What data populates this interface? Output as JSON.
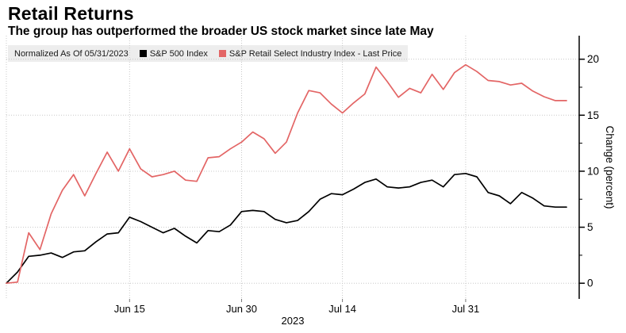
{
  "header": {
    "title": "Retail Returns",
    "subtitle": "The group has outperformed the broader US stock market since late May"
  },
  "legend": {
    "note": "Normalized As Of 05/31/2023",
    "items": [
      {
        "label": "S&P 500 Index",
        "color": "#000000"
      },
      {
        "label": "S&P Retail Select Industry Index - Last Price",
        "color": "#e36565"
      }
    ]
  },
  "chart_data": {
    "type": "line",
    "title": "Retail Returns",
    "x_unit": "trading days since 05/31/2023",
    "x_ticks": [
      {
        "day": 11,
        "label": "Jun 15"
      },
      {
        "day": 21,
        "label": "Jun 30"
      },
      {
        "day": 30,
        "label": "Jul 14"
      },
      {
        "day": 41,
        "label": "Jul 31"
      }
    ],
    "x_gridline_extra_day": 0,
    "x_period_label": "2023",
    "ylabel": "Change (percent)",
    "ylim": [
      -1.4,
      22.1
    ],
    "y_ticks": [
      0,
      5,
      10,
      15,
      20
    ],
    "y_minor_ticks": [
      2.5,
      7.5,
      12.5,
      17.5
    ],
    "grid": "dotted",
    "legend_position": "top",
    "series": [
      {
        "name": "S&P 500 Index",
        "color": "#000000",
        "values": [
          0,
          1.0,
          2.4,
          2.5,
          2.7,
          2.3,
          2.8,
          2.9,
          3.7,
          4.4,
          4.5,
          5.9,
          5.5,
          5.0,
          4.5,
          4.9,
          4.2,
          3.6,
          4.7,
          4.6,
          5.2,
          6.4,
          6.5,
          6.4,
          5.7,
          5.4,
          5.6,
          6.4,
          7.5,
          8.0,
          7.9,
          8.4,
          9.0,
          9.3,
          8.6,
          8.5,
          8.6,
          9.0,
          9.2,
          8.6,
          9.7,
          9.8,
          9.5,
          8.1,
          7.8,
          7.1,
          8.1,
          7.6,
          6.9,
          6.8,
          6.8
        ]
      },
      {
        "name": "S&P Retail Select Industry Index - Last Price",
        "color": "#e36565",
        "values": [
          0,
          0.1,
          4.5,
          3.0,
          6.2,
          8.3,
          9.7,
          7.8,
          9.8,
          11.7,
          10.0,
          12.0,
          10.2,
          9.5,
          9.7,
          10.0,
          9.2,
          9.1,
          11.2,
          11.3,
          12.0,
          12.6,
          13.5,
          12.9,
          11.6,
          12.6,
          15.2,
          17.2,
          17.0,
          16.0,
          15.2,
          16.1,
          16.9,
          19.3,
          18.0,
          16.6,
          17.4,
          17.0,
          18.65,
          17.3,
          18.8,
          19.5,
          18.9,
          18.1,
          18.0,
          17.7,
          17.85,
          17.15,
          16.65,
          16.3,
          16.3
        ]
      }
    ]
  },
  "colors": {
    "background": "#ffffff",
    "grid": "#c8c8c8",
    "axis": "#000000",
    "legend_bg": "#ededed",
    "text": "#000000"
  }
}
